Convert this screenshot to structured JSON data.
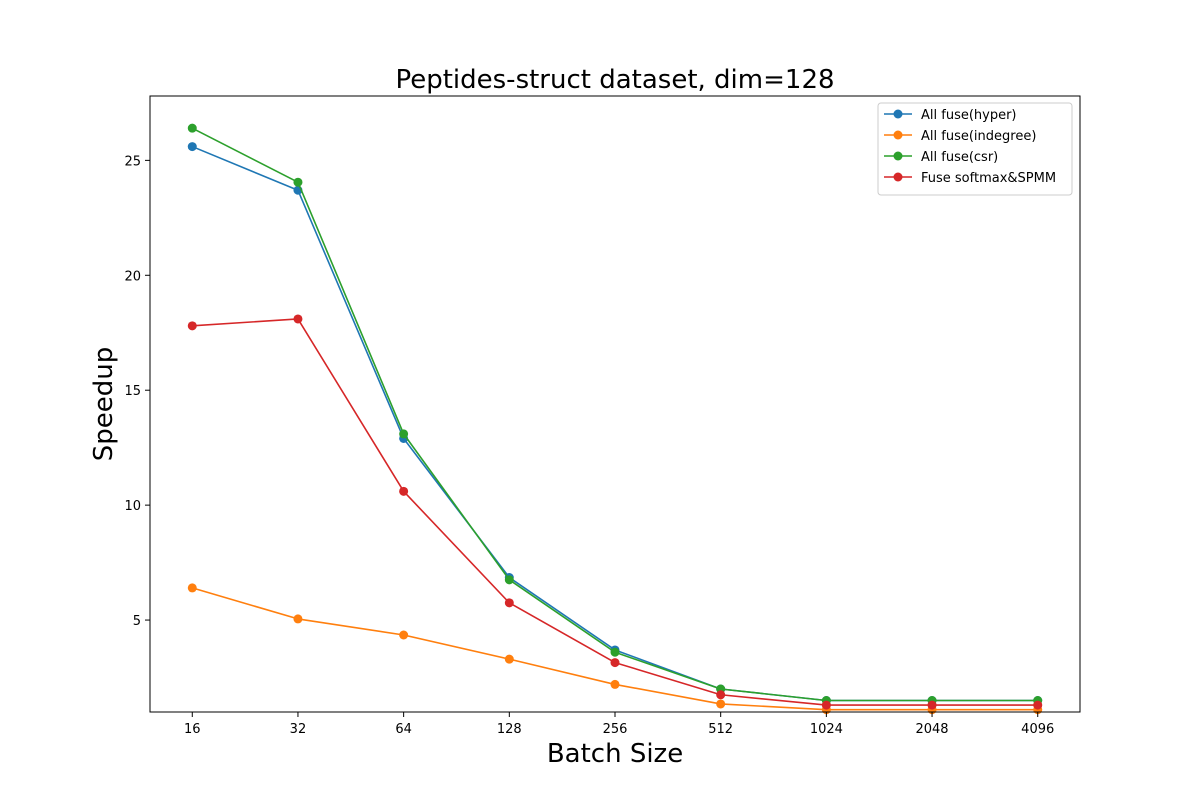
{
  "chart_data": {
    "type": "line",
    "title": "Peptides-struct dataset, dim=128",
    "xlabel": "Batch Size",
    "ylabel": "Speedup",
    "x_scale": "log2",
    "categories": [
      "16",
      "32",
      "64",
      "128",
      "256",
      "512",
      "1024",
      "2048",
      "4096"
    ],
    "x": [
      16,
      32,
      64,
      128,
      256,
      512,
      1024,
      2048,
      4096
    ],
    "ylim": [
      1.0,
      27.8
    ],
    "yticks": [
      5,
      10,
      15,
      20,
      25
    ],
    "grid": false,
    "legend_position": "top-right",
    "series": [
      {
        "name": "All fuse(hyper)",
        "color": "#1f77b4",
        "values": [
          25.6,
          23.7,
          12.9,
          6.85,
          3.7,
          2.0,
          1.5,
          1.5,
          1.5
        ]
      },
      {
        "name": "All fuse(indegree)",
        "color": "#ff7f0e",
        "values": [
          6.4,
          5.05,
          4.35,
          3.3,
          2.2,
          1.35,
          1.1,
          1.1,
          1.1
        ]
      },
      {
        "name": "All fuse(csr)",
        "color": "#2ca02c",
        "values": [
          26.4,
          24.05,
          13.1,
          6.75,
          3.6,
          2.0,
          1.5,
          1.5,
          1.5
        ]
      },
      {
        "name": "Fuse softmax&SPMM",
        "color": "#d62728",
        "values": [
          17.8,
          18.1,
          10.6,
          5.75,
          3.15,
          1.75,
          1.3,
          1.3,
          1.3
        ]
      }
    ]
  }
}
